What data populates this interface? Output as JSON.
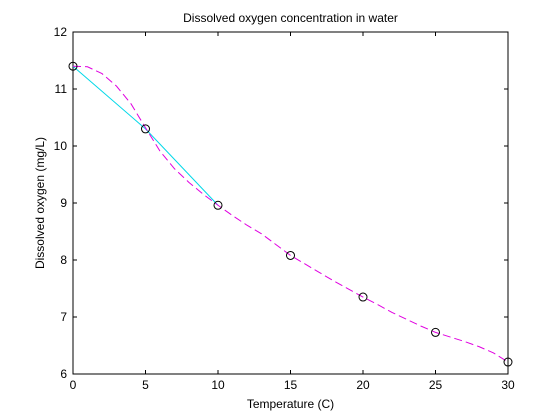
{
  "chart_data": {
    "type": "line",
    "title": "Dissolved oxygen concentration in water",
    "xlabel": "Temperature (C)",
    "ylabel": "Dissolved oxygen (mg/L)",
    "xlim": [
      0,
      30
    ],
    "ylim": [
      6,
      12
    ],
    "xticks": [
      "0",
      "5",
      "10",
      "15",
      "20",
      "25",
      "30"
    ],
    "yticks": [
      "6",
      "7",
      "8",
      "9",
      "10",
      "11",
      "12"
    ],
    "grid": false,
    "series": [
      {
        "style": "markers",
        "marker": "circle",
        "color": "#000000",
        "x": [
          0,
          5,
          10,
          15,
          20,
          25,
          30
        ],
        "y": [
          11.4,
          10.3,
          8.96,
          8.08,
          7.35,
          6.73,
          6.21
        ]
      },
      {
        "style": "solid-line",
        "color": "#00d8e8",
        "x": [
          0,
          5,
          10
        ],
        "y": [
          11.4,
          10.3,
          8.96
        ]
      },
      {
        "style": "dashed-line",
        "color": "#e000e0",
        "x": [
          0,
          1,
          2,
          3,
          4,
          5,
          6,
          7,
          8,
          9,
          10,
          11,
          12,
          13,
          14,
          15,
          16,
          17,
          18,
          19,
          20,
          21,
          22,
          23,
          24,
          25,
          26,
          27,
          28,
          29,
          30
        ],
        "y": [
          11.4,
          11.39,
          11.27,
          11.05,
          10.74,
          10.32,
          9.91,
          9.6,
          9.36,
          9.15,
          8.96,
          8.78,
          8.61,
          8.46,
          8.27,
          8.08,
          7.93,
          7.78,
          7.63,
          7.49,
          7.35,
          7.22,
          7.08,
          6.96,
          6.84,
          6.73,
          6.65,
          6.57,
          6.48,
          6.37,
          6.21
        ]
      }
    ]
  }
}
